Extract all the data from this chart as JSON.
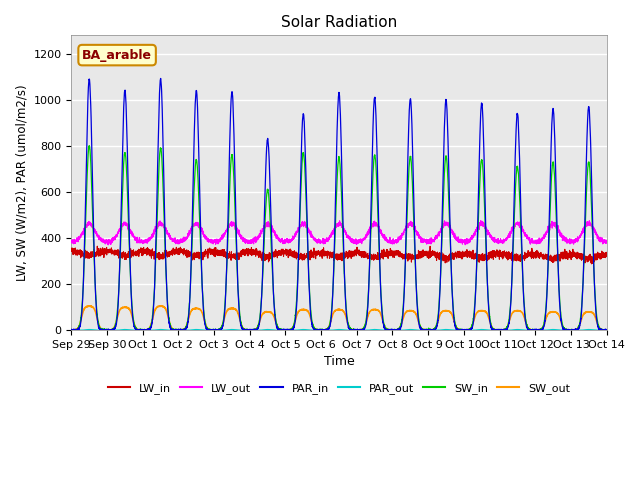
{
  "title": "Solar Radiation",
  "xlabel": "Time",
  "ylabel": "LW, SW (W/m2), PAR (umol/m2/s)",
  "label_text": "BA_arable",
  "ylim": [
    0,
    1280
  ],
  "yticks": [
    0,
    200,
    400,
    600,
    800,
    1000,
    1200
  ],
  "n_days": 15,
  "day_labels": [
    "Sep 29",
    "Sep 30",
    "Oct 1",
    "Oct 2",
    "Oct 3",
    "Oct 4",
    "Oct 5",
    "Oct 6",
    "Oct 7",
    "Oct 8",
    "Oct 9",
    "Oct 10",
    "Oct 11",
    "Oct 12",
    "Oct 13",
    "Oct 14"
  ],
  "series": {
    "LW_in": {
      "color": "#cc0000",
      "lw": 0.8
    },
    "LW_out": {
      "color": "#ff00ff",
      "lw": 0.8
    },
    "PAR_in": {
      "color": "#0000dd",
      "lw": 0.9
    },
    "PAR_out": {
      "color": "#00cccc",
      "lw": 0.8
    },
    "SW_in": {
      "color": "#00cc00",
      "lw": 0.9
    },
    "SW_out": {
      "color": "#ff9900",
      "lw": 1.2
    }
  },
  "legend_order": [
    "LW_in",
    "LW_out",
    "PAR_in",
    "PAR_out",
    "SW_in",
    "SW_out"
  ],
  "background_color": "#e8e8e8",
  "fig_background": "#ffffff",
  "grid_color": "#ffffff",
  "par_peaks": [
    1090,
    1040,
    1090,
    1040,
    1035,
    830,
    940,
    1030,
    1010,
    1005,
    1000,
    985,
    940,
    960,
    970
  ],
  "sw_peaks": [
    800,
    770,
    790,
    740,
    760,
    610,
    770,
    750,
    760,
    755,
    755,
    740,
    710,
    730,
    730
  ],
  "sw_out_peaks": [
    105,
    100,
    105,
    95,
    95,
    80,
    90,
    90,
    90,
    85,
    85,
    85,
    85,
    80,
    80
  ],
  "lw_in_base": 345,
  "lw_out_base": 383,
  "lw_in_trend": -15,
  "samples_per_day": 288
}
